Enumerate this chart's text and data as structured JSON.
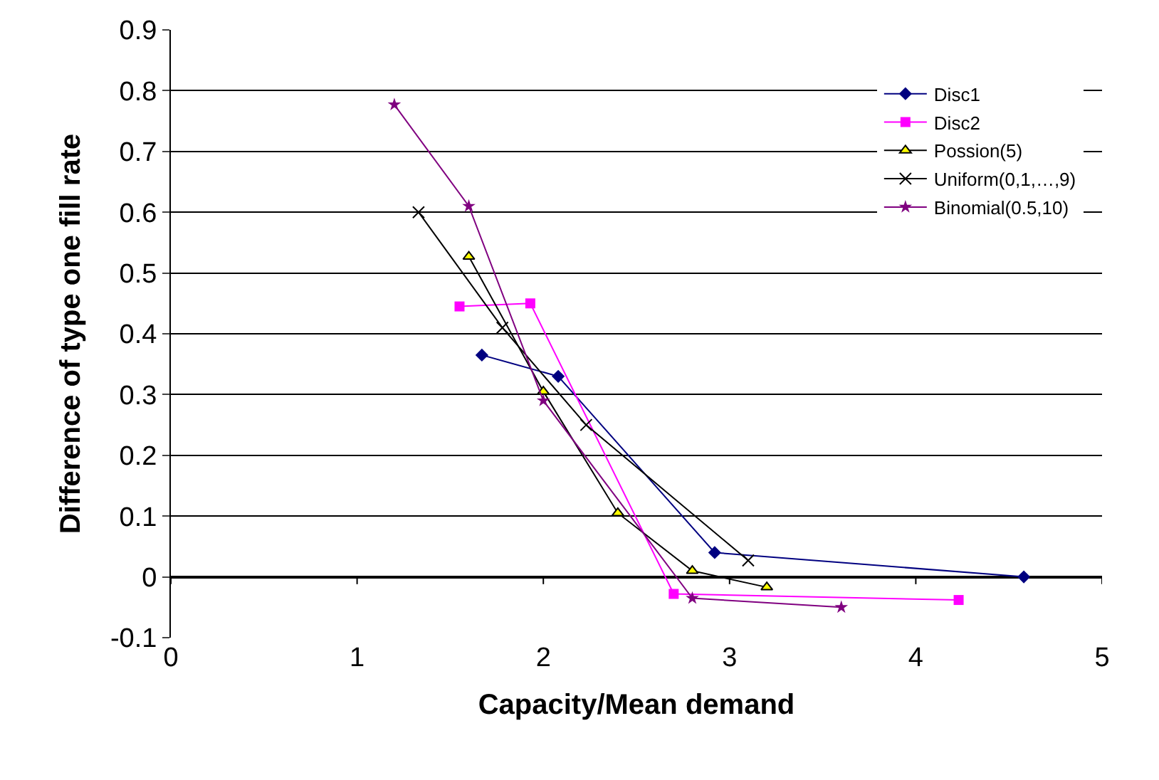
{
  "chart_data": {
    "type": "line",
    "xlabel": "Capacity/Mean demand",
    "ylabel": "Difference of type one fill rate",
    "xlim": [
      0,
      5
    ],
    "xticks": [
      0,
      1,
      2,
      3,
      4,
      5
    ],
    "ylim": [
      -0.1,
      0.9
    ],
    "yticks": [
      -0.1,
      0,
      0.1,
      0.2,
      0.3,
      0.4,
      0.5,
      0.6,
      0.7,
      0.8,
      0.9
    ],
    "grid": "y",
    "legend": "top right",
    "series": [
      {
        "name": "Disc1",
        "color": "#000080",
        "marker": "diamond",
        "x": [
          1.67,
          2.08,
          2.92,
          4.58
        ],
        "values": [
          0.365,
          0.33,
          0.04,
          0.0
        ]
      },
      {
        "name": "Disc2",
        "color": "#ff00ff",
        "marker": "square",
        "x": [
          1.55,
          1.93,
          2.7,
          4.23
        ],
        "values": [
          0.445,
          0.45,
          -0.028,
          -0.038
        ]
      },
      {
        "name": "Possion(5)",
        "color": "#ffff00",
        "marker": "triangle",
        "x": [
          1.6,
          2.0,
          2.4,
          2.8,
          3.2
        ],
        "values": [
          0.527,
          0.305,
          0.105,
          0.01,
          -0.017
        ]
      },
      {
        "name": "Uniform(0,1,…,9)",
        "color": "#000000",
        "marker": "cross",
        "x": [
          1.33,
          1.78,
          2.23,
          3.1
        ],
        "values": [
          0.6,
          0.41,
          0.25,
          0.027
        ]
      },
      {
        "name": "Binomial(0.5,10)",
        "color": "#800080",
        "marker": "star",
        "x": [
          1.2,
          1.6,
          2.0,
          2.8,
          3.6
        ],
        "values": [
          0.777,
          0.61,
          0.29,
          -0.035,
          -0.05
        ]
      }
    ]
  }
}
